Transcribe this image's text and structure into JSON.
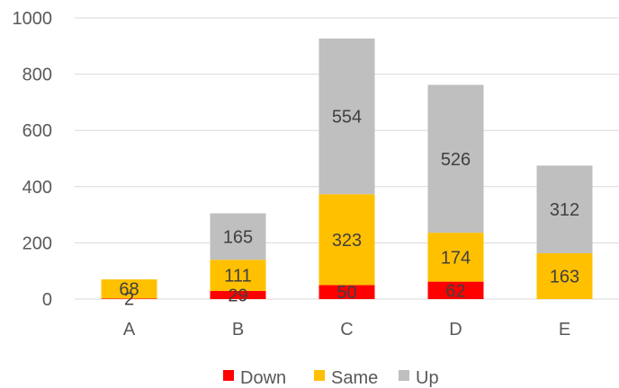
{
  "chart_data": {
    "type": "bar",
    "stacked": true,
    "categories": [
      "A",
      "B",
      "C",
      "D",
      "E"
    ],
    "series": [
      {
        "name": "Down",
        "color": "#ff0000",
        "values": [
          2,
          29,
          50,
          62,
          0
        ]
      },
      {
        "name": "Same",
        "color": "#ffc000",
        "values": [
          68,
          111,
          323,
          174,
          163
        ]
      },
      {
        "name": "Up",
        "color": "#bfbfbf",
        "values": [
          0,
          165,
          554,
          526,
          312
        ]
      }
    ],
    "data_labels": [
      [
        "2",
        "29",
        "50",
        "62",
        ""
      ],
      [
        "68",
        "111",
        "323",
        "174",
        "163"
      ],
      [
        "",
        "165",
        "554",
        "526",
        "312"
      ]
    ],
    "ylim": [
      0,
      1000
    ],
    "yticks": [
      0,
      200,
      400,
      600,
      800,
      1000
    ],
    "grid": true,
    "legend": "bottom"
  }
}
